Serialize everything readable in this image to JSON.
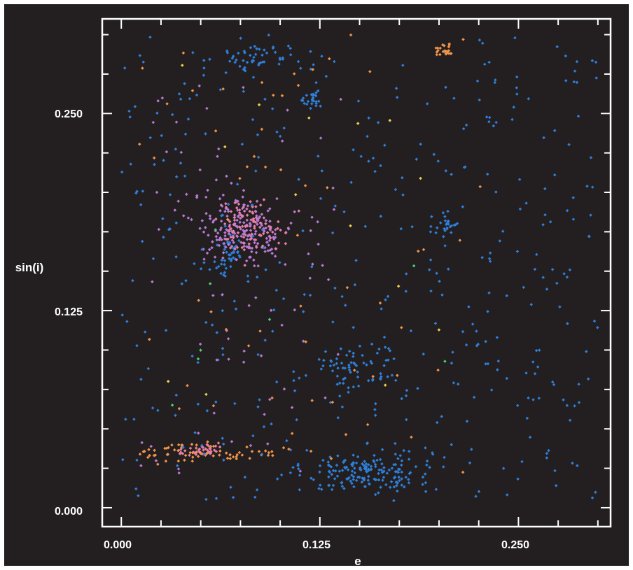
{
  "chart_data": {
    "type": "scatter",
    "title": "",
    "xlabel": "e",
    "ylabel": "sin(i)",
    "xlim": [
      -0.012,
      0.308
    ],
    "ylim": [
      -0.012,
      0.31
    ],
    "x_ticks": [
      "0.000",
      "0.125",
      "0.250"
    ],
    "y_ticks": [
      "0.000",
      "0.125",
      "0.250"
    ],
    "grid": false,
    "background": "#231f20",
    "colors": {
      "blue": "#2f7fd8",
      "violet": "#b77ad6",
      "pink": "#e87fa6",
      "orange": "#f0944a",
      "yellow": "#e8d24a",
      "green": "#4bcf78"
    },
    "clusters": [
      {
        "color": "blue",
        "n": 160,
        "cx": 0.155,
        "cy": 0.023,
        "sx": 0.02,
        "sy": 0.007
      },
      {
        "color": "blue",
        "n": 60,
        "cx": 0.148,
        "cy": 0.09,
        "sx": 0.014,
        "sy": 0.009
      },
      {
        "color": "blue",
        "n": 25,
        "cx": 0.121,
        "cy": 0.258,
        "sx": 0.003,
        "sy": 0.003
      },
      {
        "color": "blue",
        "n": 50,
        "cx": 0.088,
        "cy": 0.285,
        "sx": 0.015,
        "sy": 0.004
      },
      {
        "color": "blue",
        "n": 25,
        "cx": 0.205,
        "cy": 0.18,
        "sx": 0.004,
        "sy": 0.006
      },
      {
        "color": "blue",
        "n": 40,
        "cx": 0.068,
        "cy": 0.16,
        "sx": 0.005,
        "sy": 0.007
      },
      {
        "color": "violet",
        "n": 190,
        "cx": 0.077,
        "cy": 0.177,
        "sx": 0.016,
        "sy": 0.011
      },
      {
        "color": "pink",
        "n": 90,
        "cx": 0.08,
        "cy": 0.18,
        "sx": 0.011,
        "sy": 0.008
      },
      {
        "color": "pink",
        "n": 45,
        "cx": 0.05,
        "cy": 0.036,
        "sx": 0.008,
        "sy": 0.002
      },
      {
        "color": "orange",
        "n": 65,
        "cx": 0.057,
        "cy": 0.035,
        "sx": 0.022,
        "sy": 0.003
      },
      {
        "color": "orange",
        "n": 25,
        "cx": 0.203,
        "cy": 0.29,
        "sx": 0.004,
        "sy": 0.002
      },
      {
        "color": "blue",
        "n": 420,
        "xr": [
          0.0,
          0.3
        ],
        "yr": [
          0.005,
          0.3
        ]
      },
      {
        "color": "violet",
        "n": 70,
        "xr": [
          0.01,
          0.14
        ],
        "yr": [
          0.02,
          0.27
        ]
      },
      {
        "color": "orange",
        "n": 60,
        "xr": [
          0.01,
          0.23
        ],
        "yr": [
          0.02,
          0.3
        ]
      },
      {
        "color": "yellow",
        "n": 14,
        "xr": [
          0.02,
          0.2
        ],
        "yr": [
          0.02,
          0.29
        ]
      },
      {
        "color": "green",
        "n": 8,
        "xr": [
          0.03,
          0.21
        ],
        "yr": [
          0.03,
          0.2
        ]
      }
    ]
  }
}
